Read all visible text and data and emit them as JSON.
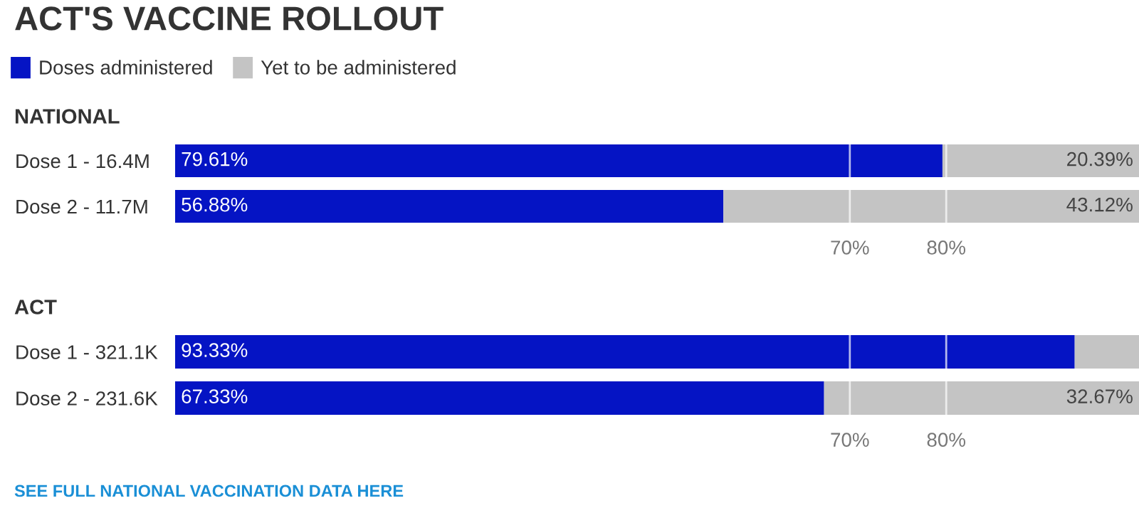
{
  "chart_data": [
    {
      "type": "bar",
      "orientation": "horizontal",
      "stacked": true,
      "title": "ACT'S VACCINE ROLLOUT",
      "subtitle": "NATIONAL",
      "categories": [
        "Dose 1 - 16.4M",
        "Dose 2 - 11.7M"
      ],
      "series": [
        {
          "name": "Doses administered",
          "color": "#0514c4",
          "values": [
            79.61,
            56.88
          ],
          "value_labels": [
            "79.61%",
            "56.88%"
          ]
        },
        {
          "name": "Yet to be administered",
          "color": "#c4c4c4",
          "values": [
            20.39,
            43.12
          ],
          "value_labels": [
            "20.39%",
            "43.12%"
          ]
        }
      ],
      "xlim": [
        0,
        100
      ],
      "ref_lines": [
        {
          "axis": "x",
          "value": 70,
          "label": "70%",
          "color": "#ffffff"
        },
        {
          "axis": "x",
          "value": 80,
          "label": "80%",
          "color": "#ffffff"
        }
      ],
      "legend": "top left"
    },
    {
      "type": "bar",
      "orientation": "horizontal",
      "stacked": true,
      "title": "ACT",
      "categories": [
        "Dose 1 - 321.1K",
        "Dose 2 - 231.6K"
      ],
      "series": [
        {
          "color": "#0514c4",
          "values": [
            93.33,
            67.33
          ],
          "value_labels": [
            "93.33%",
            "67.33%"
          ]
        },
        {
          "color": "#c4c4c4",
          "values": [
            6.7,
            32.67
          ],
          "value_labels": [
            null,
            "32.67%"
          ]
        }
      ],
      "xlim": [
        0,
        100
      ],
      "ref_lines": [
        {
          "axis": "x",
          "value": 70,
          "label": "70%",
          "color": "#ffffff"
        },
        {
          "axis": "x",
          "value": 80,
          "label": "80%",
          "color": "#ffffff"
        }
      ],
      "annotations": [
        "SEE FULL NATIONAL VACCINATION DATA HERE"
      ]
    }
  ]
}
